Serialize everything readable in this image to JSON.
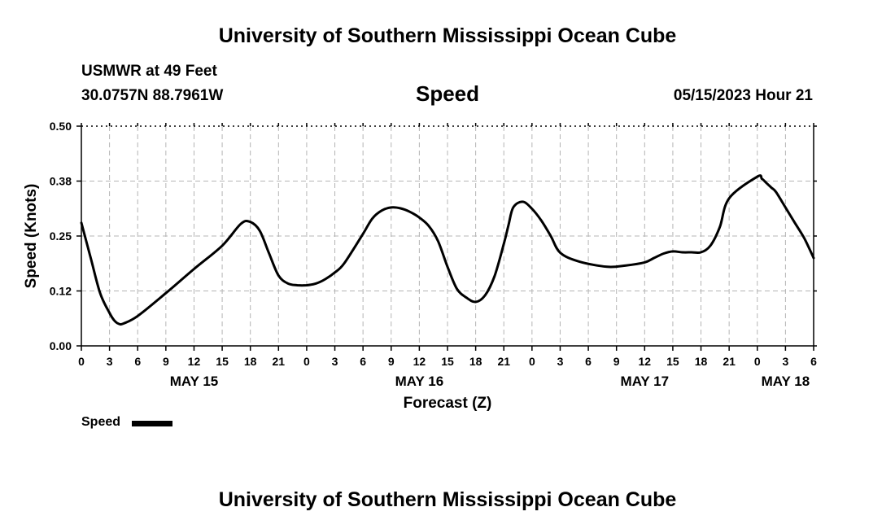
{
  "header": {
    "title_top": "University of Southern Mississippi Ocean Cube",
    "title_bottom": "University of Southern Mississippi Ocean Cube",
    "station": "USMWR at 49 Feet",
    "coords": "30.0757N  88.7961W",
    "datetime": "05/15/2023 Hour 21"
  },
  "legend": {
    "label": "Speed",
    "color": "#000000"
  },
  "chart_data": {
    "type": "line",
    "title": "Speed",
    "xlabel": "Forecast (Z)",
    "ylabel": "Speed (Knots)",
    "xlim": [
      0,
      78
    ],
    "ylim": [
      0,
      0.5
    ],
    "y_ticks": [
      0.0,
      0.125,
      0.25,
      0.375,
      0.5
    ],
    "y_tick_labels": [
      "0.00",
      "0.12",
      "0.25",
      "0.38",
      "0.50"
    ],
    "x_ticks": [
      0,
      3,
      6,
      9,
      12,
      15,
      18,
      21,
      24,
      27,
      30,
      33,
      36,
      39,
      42,
      45,
      48,
      51,
      54,
      57,
      60,
      63,
      66,
      69,
      72,
      75,
      78
    ],
    "x_tick_labels": [
      "0",
      "3",
      "6",
      "9",
      "12",
      "15",
      "18",
      "21",
      "0",
      "3",
      "6",
      "9",
      "12",
      "15",
      "18",
      "21",
      "0",
      "3",
      "6",
      "9",
      "12",
      "15",
      "18",
      "21",
      "0",
      "3",
      "6"
    ],
    "date_labels": [
      {
        "label": "MAY 15",
        "x": 12
      },
      {
        "label": "MAY 16",
        "x": 36
      },
      {
        "label": "MAY 17",
        "x": 60
      },
      {
        "label": "MAY 18",
        "x": 75
      }
    ],
    "grid": true,
    "series": [
      {
        "name": "Speed",
        "color": "#000000",
        "x": [
          0,
          1,
          2,
          3,
          3.5,
          4,
          4.5,
          6,
          9,
          12,
          15,
          17,
          18,
          19,
          20,
          21,
          22,
          23,
          24,
          25,
          26,
          27,
          28,
          30,
          31,
          32,
          33,
          34,
          35,
          36,
          37,
          38,
          39,
          40,
          41,
          42,
          43,
          44,
          45,
          45.5,
          46,
          47,
          48,
          49,
          50,
          51,
          53,
          56,
          58,
          60,
          61,
          62,
          63,
          64,
          65,
          66,
          67,
          68,
          69,
          72,
          72.5,
          73,
          73.5,
          74,
          75,
          76,
          77,
          78
        ],
        "y": [
          0.28,
          0.2,
          0.12,
          0.075,
          0.058,
          0.05,
          0.051,
          0.068,
          0.12,
          0.175,
          0.228,
          0.278,
          0.282,
          0.262,
          0.21,
          0.16,
          0.142,
          0.138,
          0.138,
          0.142,
          0.152,
          0.167,
          0.188,
          0.255,
          0.29,
          0.308,
          0.315,
          0.313,
          0.305,
          0.292,
          0.273,
          0.238,
          0.18,
          0.13,
          0.11,
          0.1,
          0.115,
          0.158,
          0.232,
          0.275,
          0.315,
          0.328,
          0.312,
          0.285,
          0.25,
          0.212,
          0.192,
          0.18,
          0.183,
          0.19,
          0.2,
          0.21,
          0.215,
          0.213,
          0.213,
          0.213,
          0.228,
          0.27,
          0.336,
          0.385,
          0.38,
          0.37,
          0.36,
          0.35,
          0.315,
          0.28,
          0.245,
          0.2
        ]
      }
    ]
  }
}
